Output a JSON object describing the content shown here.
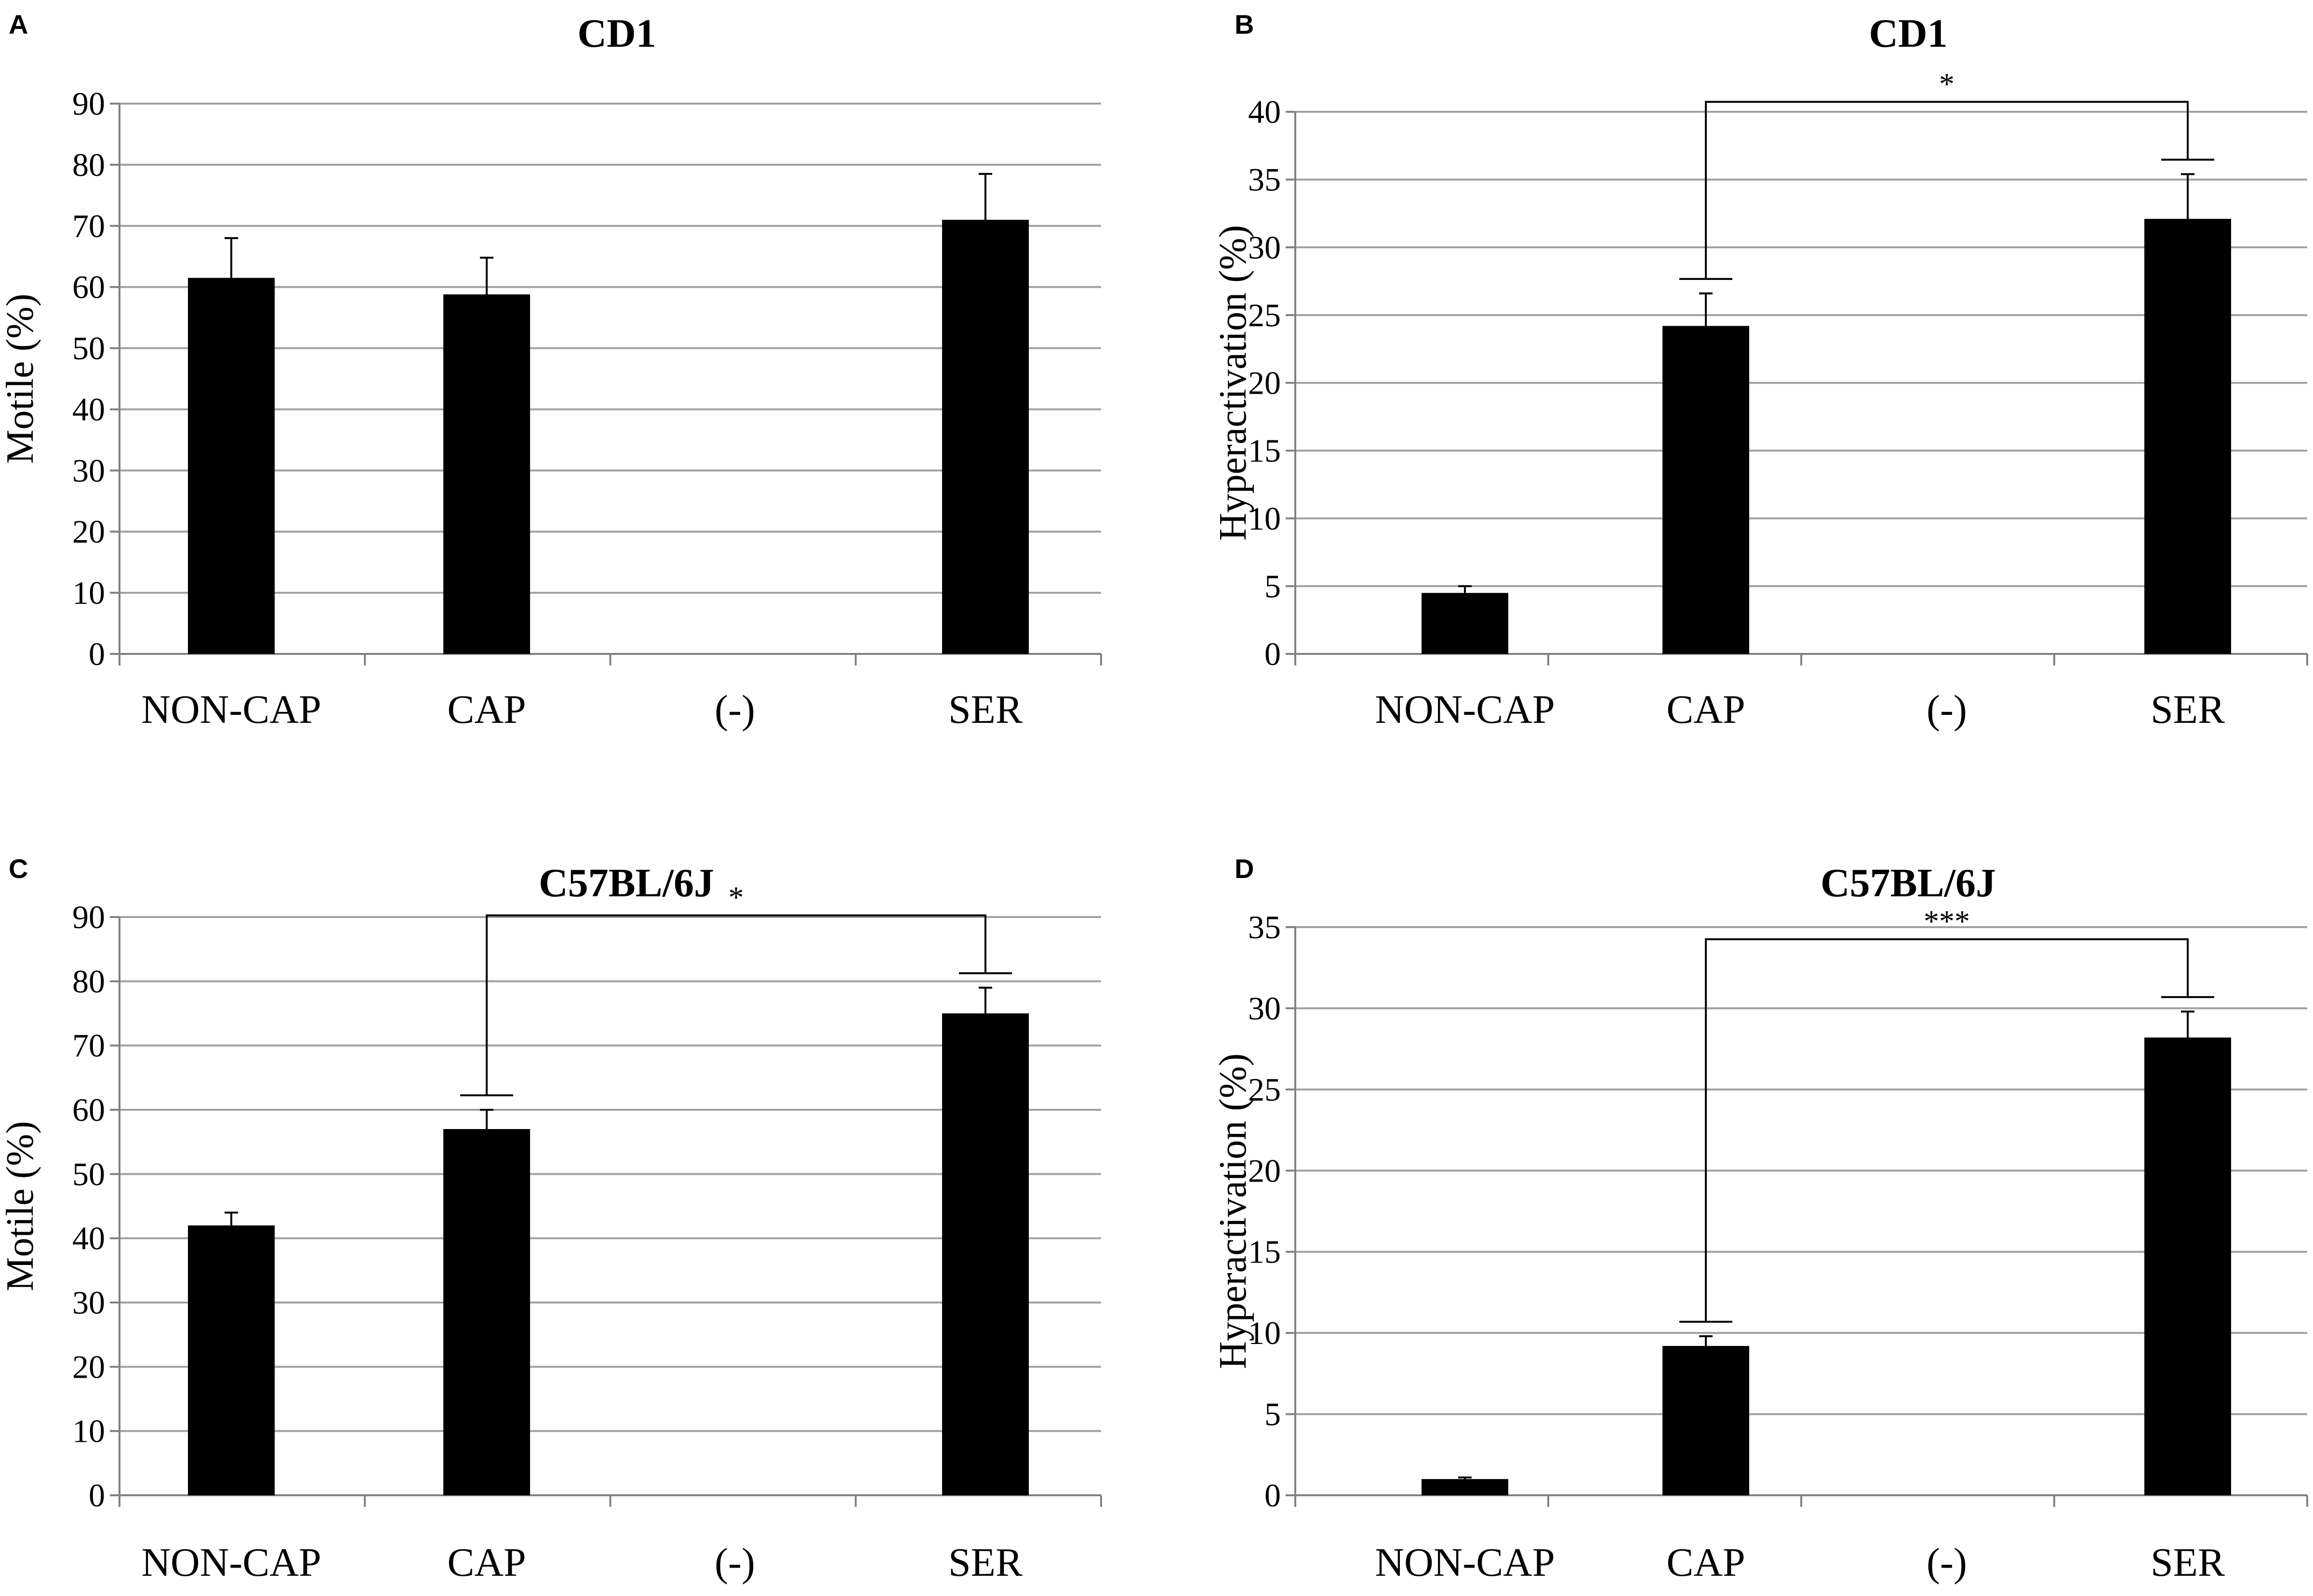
{
  "chart_data": [
    {
      "panel": "A",
      "type": "bar",
      "title": "CD1",
      "ylabel": "Motile (%)",
      "xlabel": "",
      "categories": [
        "NON-CAP",
        "CAP",
        "(-)",
        "SER"
      ],
      "values": [
        61.5,
        58.8,
        null,
        71.0
      ],
      "errors": [
        6.5,
        6.0,
        null,
        7.5
      ],
      "ylim": [
        0,
        90
      ],
      "yticks": [
        "0",
        "10",
        "20",
        "30",
        "40",
        "50",
        "60",
        "70",
        "80",
        "90"
      ],
      "grid": true,
      "significance": []
    },
    {
      "panel": "B",
      "type": "bar",
      "title": "CD1",
      "ylabel": "Hyperactivation (%)",
      "xlabel": "",
      "categories": [
        "NON-CAP",
        "CAP",
        "(-)",
        "SER"
      ],
      "values": [
        4.5,
        24.2,
        null,
        32.1
      ],
      "errors": [
        0.5,
        2.4,
        null,
        3.3
      ],
      "ylim": [
        0,
        40
      ],
      "yticks": [
        "0",
        "5",
        "10",
        "15",
        "20",
        "25",
        "30",
        "35",
        "40"
      ],
      "grid": true,
      "significance": [
        {
          "from": "CAP",
          "to": "SER",
          "label": "*"
        }
      ]
    },
    {
      "panel": "C",
      "type": "bar",
      "title": "C57BL/6J",
      "ylabel": "Motile (%)",
      "xlabel": "",
      "categories": [
        "NON-CAP",
        "CAP",
        "(-)",
        "SER"
      ],
      "values": [
        42.0,
        57.0,
        null,
        75.0
      ],
      "errors": [
        2.0,
        3.0,
        null,
        4.0
      ],
      "ylim": [
        0,
        90
      ],
      "yticks": [
        "0",
        "10",
        "20",
        "30",
        "40",
        "50",
        "60",
        "70",
        "80",
        "90"
      ],
      "grid": true,
      "significance": [
        {
          "from": "CAP",
          "to": "SER",
          "label": "*"
        }
      ]
    },
    {
      "panel": "D",
      "type": "bar",
      "title": "C57BL/6J",
      "ylabel": "Hyperactivation (%)",
      "xlabel": "",
      "categories": [
        "NON-CAP",
        "CAP",
        "(-)",
        "SER"
      ],
      "values": [
        1.0,
        9.2,
        null,
        28.2
      ],
      "errors": [
        0.1,
        0.6,
        null,
        1.6
      ],
      "ylim": [
        0,
        35
      ],
      "yticks": [
        "0",
        "5",
        "10",
        "15",
        "20",
        "25",
        "30",
        "35"
      ],
      "grid": true,
      "significance": [
        {
          "from": "CAP",
          "to": "SER",
          "label": "***"
        }
      ]
    }
  ],
  "colors": {
    "bar": "#000000",
    "grid": "#a0a0a0",
    "axis": "#808080",
    "background": "#ffffff"
  }
}
